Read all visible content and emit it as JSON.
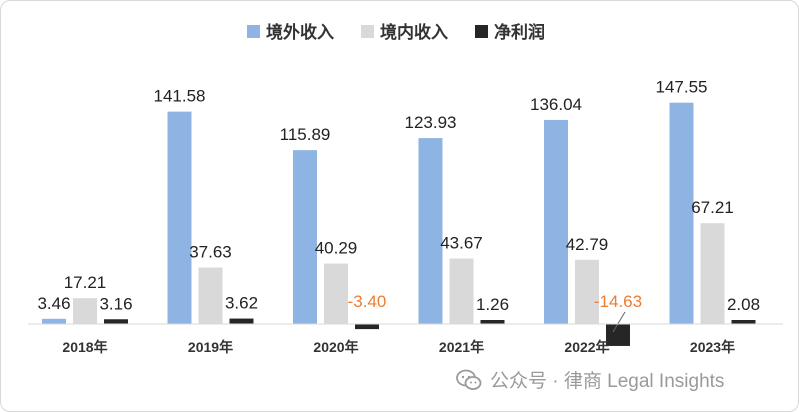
{
  "chart_data": {
    "type": "bar",
    "categories": [
      "2018年",
      "2019年",
      "2020年",
      "2021年",
      "2022年",
      "2023年"
    ],
    "series": [
      {
        "name": "境外收入",
        "color": "#8EB4E3",
        "values": [
          3.46,
          141.58,
          115.89,
          123.93,
          136.04,
          147.55
        ]
      },
      {
        "name": "境内收入",
        "color": "#D9D9D9",
        "values": [
          17.21,
          37.63,
          40.29,
          43.67,
          42.79,
          67.21
        ]
      },
      {
        "name": "净利润",
        "color": "#262626",
        "values": [
          3.16,
          3.62,
          -3.4,
          1.26,
          -14.63,
          2.08
        ]
      }
    ],
    "labels": [
      [
        "3.46",
        "141.58",
        "115.89",
        "123.93",
        "136.04",
        "147.55"
      ],
      [
        "17.21",
        "37.63",
        "40.29",
        "43.67",
        "42.79",
        "67.21"
      ],
      [
        "3.16",
        "3.62",
        "-3.40",
        "1.26",
        "-14.63",
        "2.08"
      ]
    ],
    "negative_label_color": "#ED7D31",
    "legend_position": "top-center",
    "grid": false
  },
  "watermark": {
    "icon": "wechat-icon",
    "text": "公众号 · 律商 Legal Insights"
  }
}
